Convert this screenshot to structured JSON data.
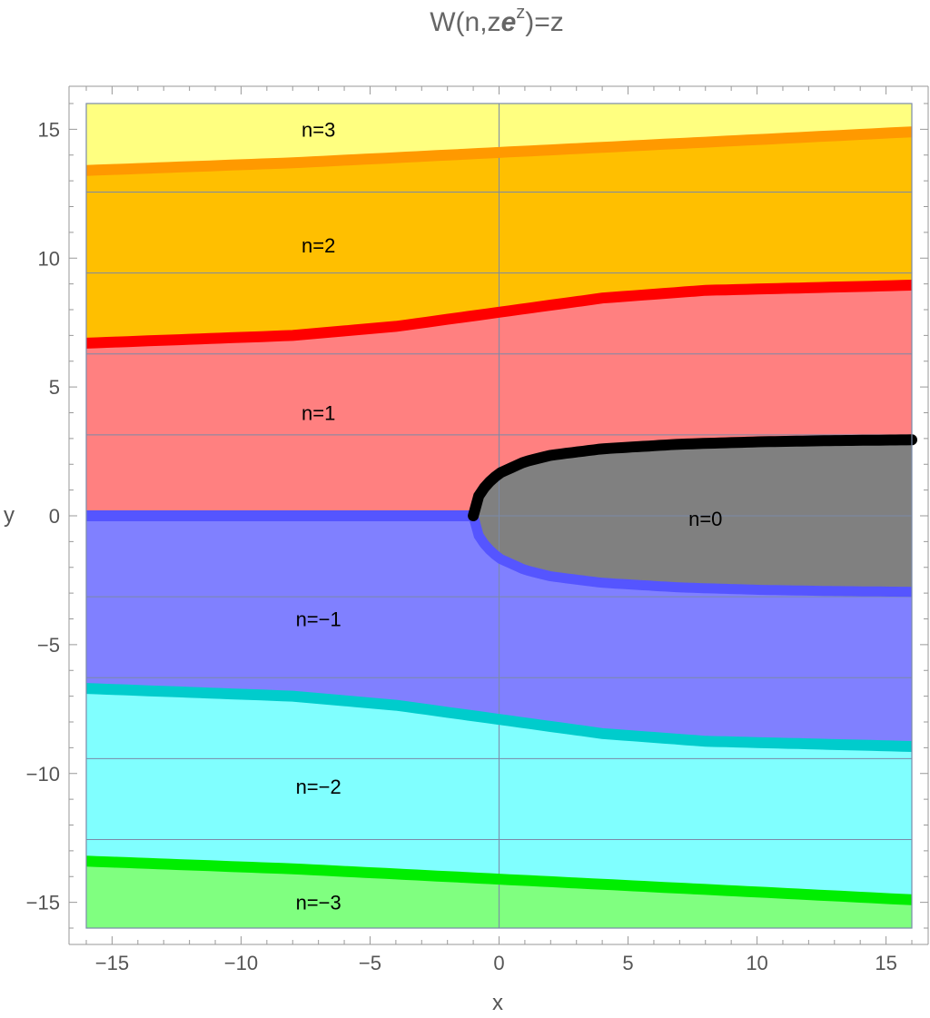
{
  "chart_data": {
    "type": "area",
    "title": "W(n,ze^z)=z",
    "title_parts": {
      "base": "W(n,z",
      "e": "e",
      "sup": "z",
      "tail": ")=z"
    },
    "xlabel": "x",
    "ylabel": "y",
    "xlim": [
      -16,
      16
    ],
    "ylim": [
      -16,
      16
    ],
    "x_ticks": [
      -15,
      -10,
      -5,
      0,
      5,
      10,
      15
    ],
    "y_ticks": [
      -15,
      -10,
      -5,
      0,
      5,
      10,
      15
    ],
    "x_tick_labels": [
      "−15",
      "−10",
      "−5",
      "0",
      "5",
      "10",
      "15"
    ],
    "y_tick_labels": [
      "−15",
      "−10",
      "−5",
      "0",
      "5",
      "10",
      "15"
    ],
    "grid": true,
    "grid_x": [
      0
    ],
    "grid_y": [
      -12.566,
      -9.425,
      -6.283,
      -3.142,
      0,
      3.142,
      6.283,
      9.425,
      12.566
    ],
    "region_colors": {
      "n3": "#ffff80",
      "n2": "#ffbf00",
      "n1": "#ff8080",
      "n0": "#808080",
      "nm1": "#8080ff",
      "nm2": "#80ffff",
      "nm3": "#80ff80"
    },
    "boundaries": [
      {
        "name": "n2|n3",
        "color": "#ff9900",
        "points": [
          [
            -16,
            13.4
          ],
          [
            -8,
            13.7
          ],
          [
            0,
            14.1
          ],
          [
            8,
            14.5
          ],
          [
            16,
            14.9
          ]
        ]
      },
      {
        "name": "n1|n2",
        "color": "#ff0000",
        "points": [
          [
            -16,
            6.7
          ],
          [
            -8,
            7.0
          ],
          [
            -4,
            7.35
          ],
          [
            0,
            7.9
          ],
          [
            4,
            8.45
          ],
          [
            8,
            8.75
          ],
          [
            16,
            8.95
          ]
        ]
      },
      {
        "name": "nm1|nm2",
        "color": "#00cccc",
        "points": [
          [
            -16,
            -6.7
          ],
          [
            -8,
            -7.0
          ],
          [
            -4,
            -7.35
          ],
          [
            0,
            -7.9
          ],
          [
            4,
            -8.45
          ],
          [
            8,
            -8.75
          ],
          [
            16,
            -8.95
          ]
        ]
      },
      {
        "name": "nm2|nm3",
        "color": "#00ee00",
        "points": [
          [
            -16,
            -13.4
          ],
          [
            -8,
            -13.7
          ],
          [
            0,
            -14.1
          ],
          [
            8,
            -14.5
          ],
          [
            16,
            -14.9
          ]
        ]
      },
      {
        "name": "n1|nm1 branch cut",
        "color": "#5555ff",
        "points": [
          [
            -16,
            0
          ],
          [
            -1,
            0
          ]
        ]
      }
    ],
    "n0_boundary": {
      "upper_color": "#000000",
      "lower_color": "#5555ff",
      "upper": [
        [
          -1,
          0
        ],
        [
          -0.9,
          0.6
        ],
        [
          -0.5,
          1.2
        ],
        [
          0,
          1.65
        ],
        [
          1,
          2.1
        ],
        [
          2,
          2.35
        ],
        [
          4,
          2.6
        ],
        [
          7,
          2.78
        ],
        [
          10,
          2.87
        ],
        [
          13,
          2.92
        ],
        [
          16,
          2.95
        ]
      ],
      "lower": [
        [
          -1,
          0
        ],
        [
          -0.9,
          -0.6
        ],
        [
          -0.5,
          -1.2
        ],
        [
          0,
          -1.65
        ],
        [
          1,
          -2.1
        ],
        [
          2,
          -2.35
        ],
        [
          4,
          -2.6
        ],
        [
          7,
          -2.78
        ],
        [
          10,
          -2.87
        ],
        [
          13,
          -2.92
        ],
        [
          16,
          -2.95
        ]
      ]
    },
    "region_labels": [
      {
        "text": "n=3",
        "x": -7,
        "y": 15
      },
      {
        "text": "n=2",
        "x": -7,
        "y": 10.5
      },
      {
        "text": "n=1",
        "x": -7,
        "y": 4
      },
      {
        "text": "n=0",
        "x": 8,
        "y": -0.1
      },
      {
        "text": "n=−1",
        "x": -7,
        "y": -4
      },
      {
        "text": "n=−2",
        "x": -7,
        "y": -10.5
      },
      {
        "text": "n=−3",
        "x": -7,
        "y": -15
      }
    ]
  }
}
